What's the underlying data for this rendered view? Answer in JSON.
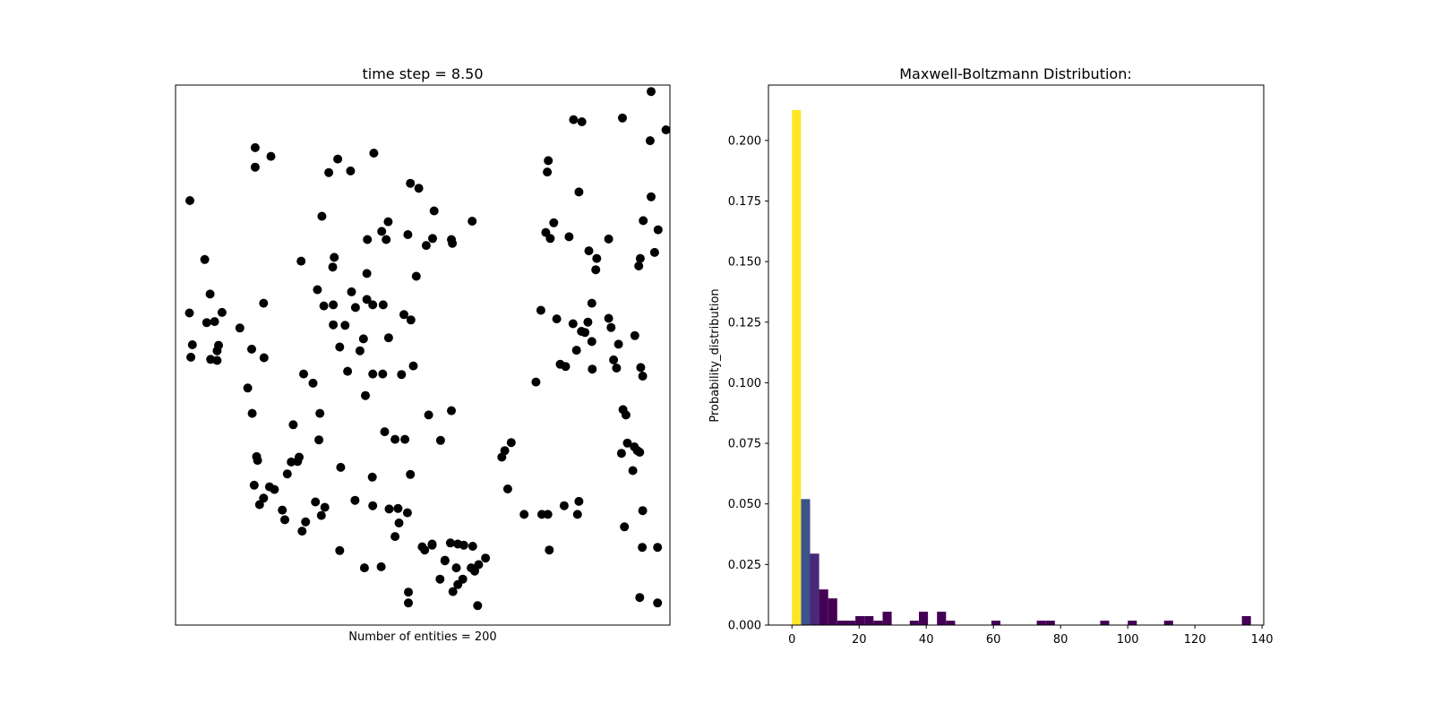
{
  "scatter_panel": {
    "title": "time step = 8.50",
    "xlabel": "Number of entities = 200"
  },
  "hist_panel": {
    "title": "Maxwell-Boltzmann Distribution:",
    "ylabel": "Probability_distribution"
  },
  "colors": {
    "points": "#000000",
    "frame": "#000000",
    "bar_high": "#fde725",
    "bar_mid": "#3b528b",
    "bar_low": "#482878",
    "bar_lowest": "#440154"
  },
  "chart_data": [
    {
      "type": "scatter",
      "title": "time step = 8.50",
      "xlabel": "Number of entities = 200",
      "axes_visible": false,
      "xlim": [
        0,
        1
      ],
      "ylim": [
        0,
        1
      ],
      "point_count": 200,
      "points": [
        [
          0.962,
          0.988
        ],
        [
          0.992,
          0.917
        ],
        [
          0.904,
          0.939
        ],
        [
          0.822,
          0.932
        ],
        [
          0.805,
          0.936
        ],
        [
          0.96,
          0.897
        ],
        [
          0.976,
          0.732
        ],
        [
          0.962,
          0.793
        ],
        [
          0.969,
          0.69
        ],
        [
          0.946,
          0.749
        ],
        [
          0.937,
          0.665
        ],
        [
          0.929,
          0.536
        ],
        [
          0.941,
          0.477
        ],
        [
          0.892,
          0.476
        ],
        [
          0.939,
          0.32
        ],
        [
          0.944,
          0.144
        ],
        [
          0.908,
          0.182
        ],
        [
          0.975,
          0.144
        ],
        [
          0.939,
          0.051
        ],
        [
          0.975,
          0.041
        ],
        [
          0.94,
          0.679
        ],
        [
          0.85,
          0.658
        ],
        [
          0.836,
          0.693
        ],
        [
          0.796,
          0.719
        ],
        [
          0.765,
          0.745
        ],
        [
          0.749,
          0.727
        ],
        [
          0.752,
          0.839
        ],
        [
          0.754,
          0.86
        ],
        [
          0.816,
          0.802
        ],
        [
          0.758,
          0.716
        ],
        [
          0.821,
          0.544
        ],
        [
          0.771,
          0.567
        ],
        [
          0.842,
          0.596
        ],
        [
          0.876,
          0.715
        ],
        [
          0.876,
          0.568
        ],
        [
          0.834,
          0.561
        ],
        [
          0.881,
          0.551
        ],
        [
          0.804,
          0.558
        ],
        [
          0.828,
          0.542
        ],
        [
          0.811,
          0.509
        ],
        [
          0.896,
          0.52
        ],
        [
          0.778,
          0.483
        ],
        [
          0.729,
          0.45
        ],
        [
          0.905,
          0.399
        ],
        [
          0.911,
          0.389
        ],
        [
          0.945,
          0.461
        ],
        [
          0.842,
          0.525
        ],
        [
          0.886,
          0.491
        ],
        [
          0.789,
          0.479
        ],
        [
          0.843,
          0.474
        ],
        [
          0.739,
          0.583
        ],
        [
          0.852,
          0.679
        ],
        [
          0.914,
          0.337
        ],
        [
          0.928,
          0.33
        ],
        [
          0.934,
          0.323
        ],
        [
          0.902,
          0.318
        ],
        [
          0.945,
          0.212
        ],
        [
          0.925,
          0.286
        ],
        [
          0.786,
          0.221
        ],
        [
          0.816,
          0.229
        ],
        [
          0.813,
          0.205
        ],
        [
          0.753,
          0.205
        ],
        [
          0.741,
          0.205
        ],
        [
          0.705,
          0.205
        ],
        [
          0.672,
          0.252
        ],
        [
          0.66,
          0.311
        ],
        [
          0.679,
          0.338
        ],
        [
          0.666,
          0.323
        ],
        [
          0.756,
          0.139
        ],
        [
          0.627,
          0.124
        ],
        [
          0.601,
          0.146
        ],
        [
          0.613,
          0.112
        ],
        [
          0.605,
          0.1
        ],
        [
          0.581,
          0.085
        ],
        [
          0.568,
          0.106
        ],
        [
          0.583,
          0.148
        ],
        [
          0.598,
          0.106
        ],
        [
          0.571,
          0.15
        ],
        [
          0.556,
          0.152
        ],
        [
          0.519,
          0.148
        ],
        [
          0.535,
          0.085
        ],
        [
          0.571,
          0.075
        ],
        [
          0.545,
          0.119
        ],
        [
          0.504,
          0.139
        ],
        [
          0.561,
          0.062
        ],
        [
          0.545,
          0.12
        ],
        [
          0.611,
          0.036
        ],
        [
          0.471,
          0.061
        ],
        [
          0.471,
          0.041
        ],
        [
          0.475,
          0.279
        ],
        [
          0.452,
          0.189
        ],
        [
          0.469,
          0.208
        ],
        [
          0.45,
          0.216
        ],
        [
          0.432,
          0.215
        ],
        [
          0.416,
          0.108
        ],
        [
          0.399,
          0.221
        ],
        [
          0.499,
          0.145
        ],
        [
          0.519,
          0.15
        ],
        [
          0.444,
          0.164
        ],
        [
          0.382,
          0.106
        ],
        [
          0.363,
          0.231
        ],
        [
          0.334,
          0.292
        ],
        [
          0.398,
          0.274
        ],
        [
          0.399,
          0.465
        ],
        [
          0.384,
          0.425
        ],
        [
          0.423,
          0.358
        ],
        [
          0.419,
          0.465
        ],
        [
          0.444,
          0.344
        ],
        [
          0.464,
          0.344
        ],
        [
          0.536,
          0.342
        ],
        [
          0.512,
          0.389
        ],
        [
          0.558,
          0.397
        ],
        [
          0.481,
          0.48
        ],
        [
          0.457,
          0.464
        ],
        [
          0.476,
          0.565
        ],
        [
          0.462,
          0.575
        ],
        [
          0.42,
          0.593
        ],
        [
          0.399,
          0.593
        ],
        [
          0.431,
          0.532
        ],
        [
          0.487,
          0.646
        ],
        [
          0.47,
          0.723
        ],
        [
          0.507,
          0.703
        ],
        [
          0.52,
          0.716
        ],
        [
          0.56,
          0.707
        ],
        [
          0.558,
          0.714
        ],
        [
          0.6,
          0.748
        ],
        [
          0.523,
          0.767
        ],
        [
          0.492,
          0.809
        ],
        [
          0.475,
          0.818
        ],
        [
          0.401,
          0.874
        ],
        [
          0.354,
          0.841
        ],
        [
          0.328,
          0.863
        ],
        [
          0.31,
          0.838
        ],
        [
          0.296,
          0.757
        ],
        [
          0.426,
          0.714
        ],
        [
          0.43,
          0.747
        ],
        [
          0.417,
          0.729
        ],
        [
          0.387,
          0.651
        ],
        [
          0.387,
          0.603
        ],
        [
          0.388,
          0.714
        ],
        [
          0.364,
          0.588
        ],
        [
          0.343,
          0.555
        ],
        [
          0.332,
          0.515
        ],
        [
          0.348,
          0.47
        ],
        [
          0.373,
          0.508
        ],
        [
          0.38,
          0.53
        ],
        [
          0.356,
          0.617
        ],
        [
          0.319,
          0.593
        ],
        [
          0.319,
          0.556
        ],
        [
          0.3,
          0.591
        ],
        [
          0.287,
          0.621
        ],
        [
          0.318,
          0.663
        ],
        [
          0.321,
          0.681
        ],
        [
          0.254,
          0.674
        ],
        [
          0.259,
          0.465
        ],
        [
          0.278,
          0.448
        ],
        [
          0.292,
          0.392
        ],
        [
          0.29,
          0.343
        ],
        [
          0.238,
          0.371
        ],
        [
          0.25,
          0.311
        ],
        [
          0.234,
          0.302
        ],
        [
          0.247,
          0.303
        ],
        [
          0.226,
          0.28
        ],
        [
          0.302,
          0.218
        ],
        [
          0.216,
          0.213
        ],
        [
          0.263,
          0.191
        ],
        [
          0.221,
          0.195
        ],
        [
          0.295,
          0.203
        ],
        [
          0.19,
          0.256
        ],
        [
          0.17,
          0.223
        ],
        [
          0.178,
          0.235
        ],
        [
          0.256,
          0.174
        ],
        [
          0.283,
          0.228
        ],
        [
          0.332,
          0.138
        ],
        [
          0.2,
          0.251
        ],
        [
          0.159,
          0.259
        ],
        [
          0.166,
          0.305
        ],
        [
          0.164,
          0.312
        ],
        [
          0.155,
          0.392
        ],
        [
          0.154,
          0.511
        ],
        [
          0.179,
          0.495
        ],
        [
          0.146,
          0.439
        ],
        [
          0.178,
          0.596
        ],
        [
          0.13,
          0.55
        ],
        [
          0.084,
          0.49
        ],
        [
          0.071,
          0.492
        ],
        [
          0.084,
          0.508
        ],
        [
          0.063,
          0.56
        ],
        [
          0.079,
          0.562
        ],
        [
          0.087,
          0.518
        ],
        [
          0.094,
          0.579
        ],
        [
          0.028,
          0.578
        ],
        [
          0.031,
          0.496
        ],
        [
          0.034,
          0.519
        ],
        [
          0.07,
          0.613
        ],
        [
          0.059,
          0.677
        ],
        [
          0.029,
          0.786
        ],
        [
          0.161,
          0.884
        ],
        [
          0.193,
          0.868
        ],
        [
          0.161,
          0.848
        ]
      ]
    },
    {
      "type": "bar",
      "title": "Maxwell-Boltzmann Distribution:",
      "xlabel": "",
      "ylabel": "Probability_distribution",
      "xlim": [
        -7,
        140.5
      ],
      "ylim": [
        0,
        0.2125
      ],
      "xticks": [
        0,
        20,
        40,
        60,
        80,
        100,
        120,
        140
      ],
      "yticks": [
        "0.000",
        "0.025",
        "0.050",
        "0.075",
        "0.100",
        "0.125",
        "0.150",
        "0.175",
        "0.200"
      ],
      "bin_width": 2.7,
      "bins": [
        {
          "x": 0.0,
          "value": 0.2125
        },
        {
          "x": 2.7,
          "value": 0.052
        },
        {
          "x": 5.4,
          "value": 0.0295
        },
        {
          "x": 8.1,
          "value": 0.0147
        },
        {
          "x": 10.8,
          "value": 0.011
        },
        {
          "x": 13.5,
          "value": 0.0018
        },
        {
          "x": 16.2,
          "value": 0.0018
        },
        {
          "x": 18.9,
          "value": 0.0037
        },
        {
          "x": 21.6,
          "value": 0.0037
        },
        {
          "x": 24.3,
          "value": 0.0018
        },
        {
          "x": 27.0,
          "value": 0.0055
        },
        {
          "x": 35.1,
          "value": 0.0018
        },
        {
          "x": 37.8,
          "value": 0.0055
        },
        {
          "x": 43.2,
          "value": 0.0055
        },
        {
          "x": 45.9,
          "value": 0.0018
        },
        {
          "x": 59.4,
          "value": 0.0018
        },
        {
          "x": 72.9,
          "value": 0.0018
        },
        {
          "x": 75.6,
          "value": 0.0018
        },
        {
          "x": 91.8,
          "value": 0.0018
        },
        {
          "x": 100.0,
          "value": 0.0018
        },
        {
          "x": 110.8,
          "value": 0.0018
        },
        {
          "x": 134.0,
          "value": 0.0037
        }
      ]
    }
  ]
}
